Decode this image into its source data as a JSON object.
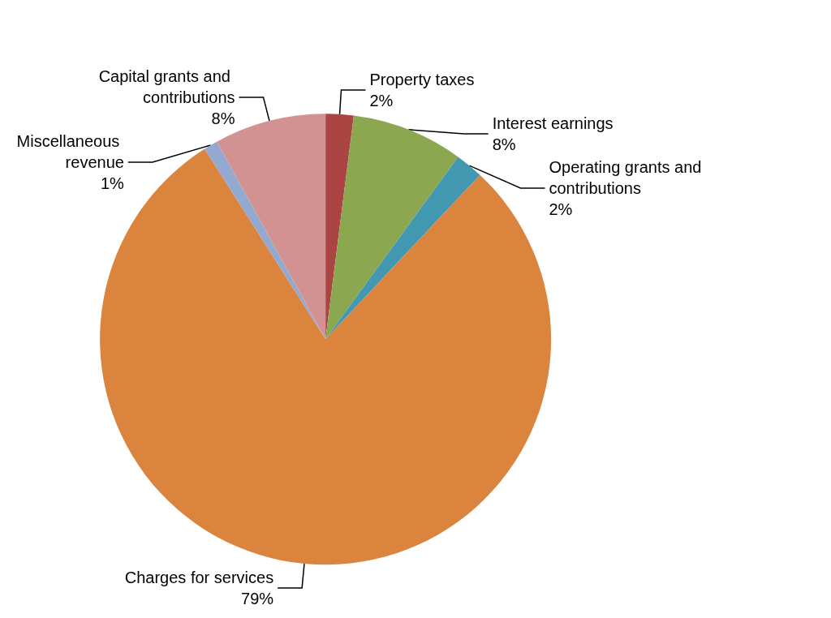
{
  "chart_data": {
    "type": "pie",
    "categories": [
      "Property taxes",
      "Interest earnings",
      "Operating grants and contributions",
      "Charges for services",
      "Miscellaneous revenue",
      "Capital grants and contributions"
    ],
    "values": [
      2,
      8,
      2,
      79,
      1,
      8
    ],
    "colors": [
      "#ab4544",
      "#8ba74f",
      "#4298b0",
      "#db843d",
      "#94a9cf",
      "#d39292"
    ],
    "value_labels": [
      "2%",
      "8%",
      "2%",
      "79%",
      "1%",
      "8%"
    ],
    "legend": false
  }
}
